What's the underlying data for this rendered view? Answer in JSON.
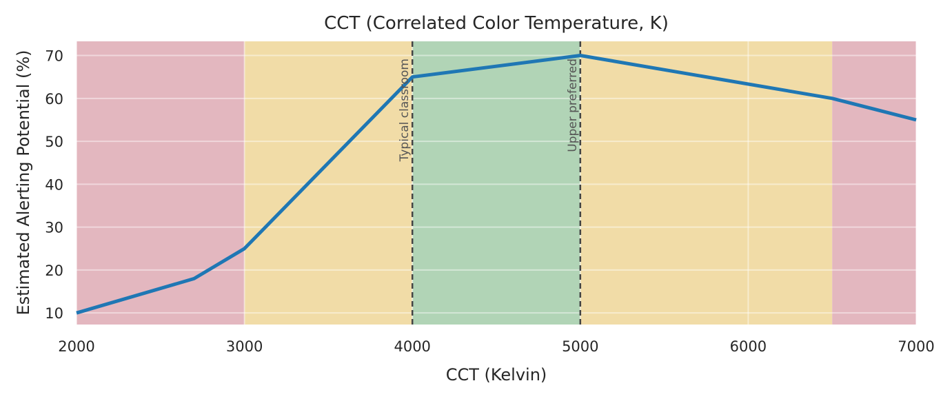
{
  "chart_data": {
    "type": "line",
    "title": "CCT (Correlated Color Temperature, K)",
    "xlabel": "CCT (Kelvin)",
    "ylabel": "Estimated Alerting Potential (%)",
    "xlim": [
      2000,
      7000
    ],
    "ylim": [
      7.3,
      73.3
    ],
    "xticks": [
      2000,
      3000,
      4000,
      5000,
      6000,
      7000
    ],
    "yticks": [
      10,
      20,
      30,
      40,
      50,
      60,
      70
    ],
    "grid": true,
    "series": [
      {
        "x": [
          2000,
          2700,
          3000,
          4000,
          5000,
          6500,
          7000
        ],
        "values": [
          10,
          18,
          25,
          65,
          70,
          60,
          55
        ],
        "color": "#1f77b4"
      }
    ],
    "bands": [
      {
        "from": 2000,
        "to": 3000,
        "color": "#e3b7bf"
      },
      {
        "from": 3000,
        "to": 4000,
        "color": "#f1dca7"
      },
      {
        "from": 4000,
        "to": 5000,
        "color": "#b1d4b6"
      },
      {
        "from": 5000,
        "to": 6500,
        "color": "#f1dca7"
      },
      {
        "from": 6500,
        "to": 7000,
        "color": "#e3b7bf"
      }
    ],
    "annotations": [
      {
        "x": 4000,
        "text": "Typical classroom"
      },
      {
        "x": 5000,
        "text": "Upper preferred"
      }
    ]
  }
}
